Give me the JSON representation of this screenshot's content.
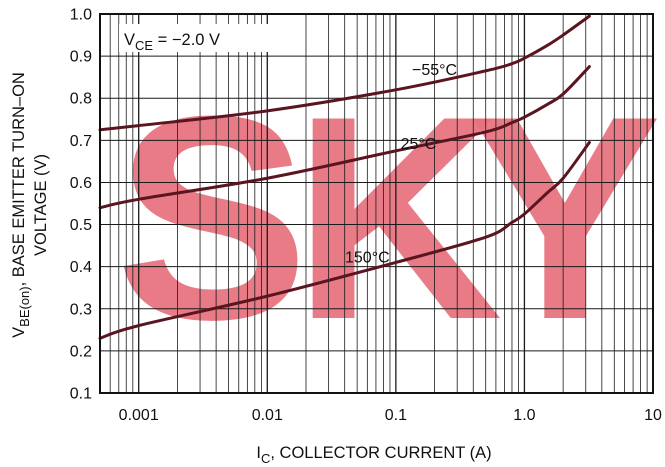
{
  "chart_data": {
    "type": "line",
    "title": "",
    "condition": {
      "main": "V",
      "sub": "CE",
      "rest": " = −2.0 V"
    },
    "xlabel": {
      "main": "I",
      "sub": "C",
      "rest": ", COLLECTOR CURRENT (A)"
    },
    "ylabel": {
      "line1": {
        "main": "V",
        "sub": "BE(on)",
        "rest": ", BASE EMITTER TURN–ON"
      },
      "line2": "VOLTAGE (V)"
    },
    "x_scale": "log",
    "xlim": [
      0.0005,
      10
    ],
    "ylim": [
      0.1,
      1.0
    ],
    "grid": true,
    "x_ticks": [
      {
        "value": 0.001,
        "label": "0.001"
      },
      {
        "value": 0.01,
        "label": "0.01"
      },
      {
        "value": 0.1,
        "label": "0.1"
      },
      {
        "value": 1,
        "label": "1.0"
      },
      {
        "value": 10,
        "label": "10"
      }
    ],
    "y_ticks": [
      {
        "value": 0.1,
        "label": "0.1"
      },
      {
        "value": 0.2,
        "label": "0.2"
      },
      {
        "value": 0.3,
        "label": "0.3"
      },
      {
        "value": 0.4,
        "label": "0.4"
      },
      {
        "value": 0.5,
        "label": "0.5"
      },
      {
        "value": 0.6,
        "label": "0.6"
      },
      {
        "value": 0.7,
        "label": "0.7"
      },
      {
        "value": 0.8,
        "label": "0.8"
      },
      {
        "value": 0.9,
        "label": "0.9"
      },
      {
        "value": 1.0,
        "label": "1.0"
      }
    ],
    "series": [
      {
        "name": "−55°C",
        "label_at": {
          "x": 0.2,
          "y": 0.855
        },
        "x": [
          0.0005,
          0.001,
          0.01,
          0.1,
          0.5,
          0.8,
          1.0,
          1.5,
          2.0,
          3.2
        ],
        "y": [
          0.725,
          0.735,
          0.77,
          0.82,
          0.865,
          0.882,
          0.895,
          0.925,
          0.95,
          0.995
        ]
      },
      {
        "name": "25°C",
        "label_at": {
          "x": 0.15,
          "y": 0.68
        },
        "x": [
          0.0005,
          0.001,
          0.01,
          0.1,
          0.5,
          0.8,
          1.0,
          1.5,
          2.0,
          3.2
        ],
        "y": [
          0.54,
          0.56,
          0.61,
          0.675,
          0.72,
          0.742,
          0.755,
          0.785,
          0.81,
          0.875
        ]
      },
      {
        "name": "150°C",
        "label_at": {
          "x": 0.06,
          "y": 0.41
        },
        "x": [
          0.0005,
          0.001,
          0.01,
          0.1,
          0.5,
          0.8,
          1.0,
          1.5,
          2.0,
          3.2
        ],
        "y": [
          0.23,
          0.26,
          0.33,
          0.41,
          0.47,
          0.505,
          0.525,
          0.575,
          0.61,
          0.695
        ]
      }
    ],
    "colors": {
      "curve": "#5a1520",
      "grid": "#1a1a1a",
      "watermark": "#e6707c"
    }
  },
  "watermark": {
    "text": "SKY"
  }
}
